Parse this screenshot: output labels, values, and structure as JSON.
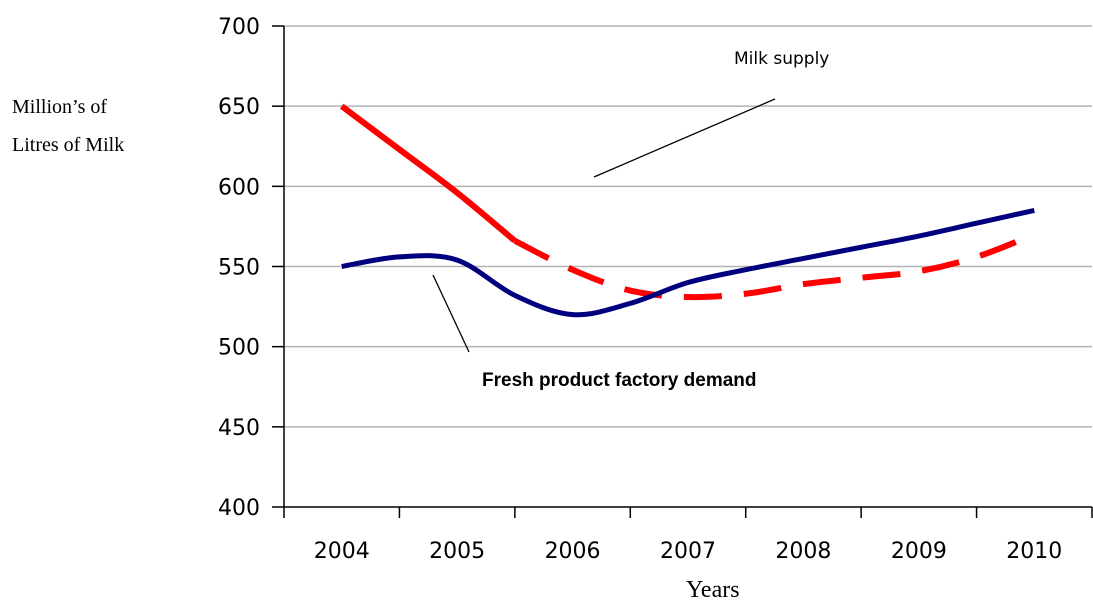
{
  "chart_data": {
    "type": "line",
    "title": "",
    "xlabel": "Years",
    "ylabel": "Million’s of Litres of Milk",
    "ylabel_lines": [
      "Million’s of",
      "Litres of Milk"
    ],
    "ylim": [
      400,
      700
    ],
    "yticks": [
      400,
      450,
      500,
      550,
      600,
      650,
      700
    ],
    "categories": [
      "2004",
      "2005",
      "2006",
      "2007",
      "2008",
      "2009",
      "2010"
    ],
    "grid": true,
    "series": [
      {
        "name": "Milk supply",
        "color": "#ff0000",
        "style": "solid then dashed",
        "x": [
          2004,
          2004.5,
          2005,
          2005.5,
          2006,
          2006.5,
          2007,
          2007.5,
          2008,
          2008.5,
          2009,
          2009.5,
          2010
        ],
        "values": [
          650,
          623,
          596,
          566,
          548,
          535,
          531,
          533,
          539,
          543,
          547,
          556,
          570
        ]
      },
      {
        "name": "Fresh product factory demand",
        "color": "#00007f",
        "style": "solid",
        "x": [
          2004,
          2004.5,
          2005,
          2005.5,
          2006,
          2006.5,
          2007,
          2007.5,
          2008,
          2008.5,
          2009,
          2009.5,
          2010
        ],
        "values": [
          550,
          556,
          554,
          532,
          520,
          527,
          540,
          548,
          555,
          562,
          569,
          577,
          585
        ]
      }
    ],
    "annotations": [
      "Milk supply",
      "Fresh product factory demand"
    ]
  }
}
